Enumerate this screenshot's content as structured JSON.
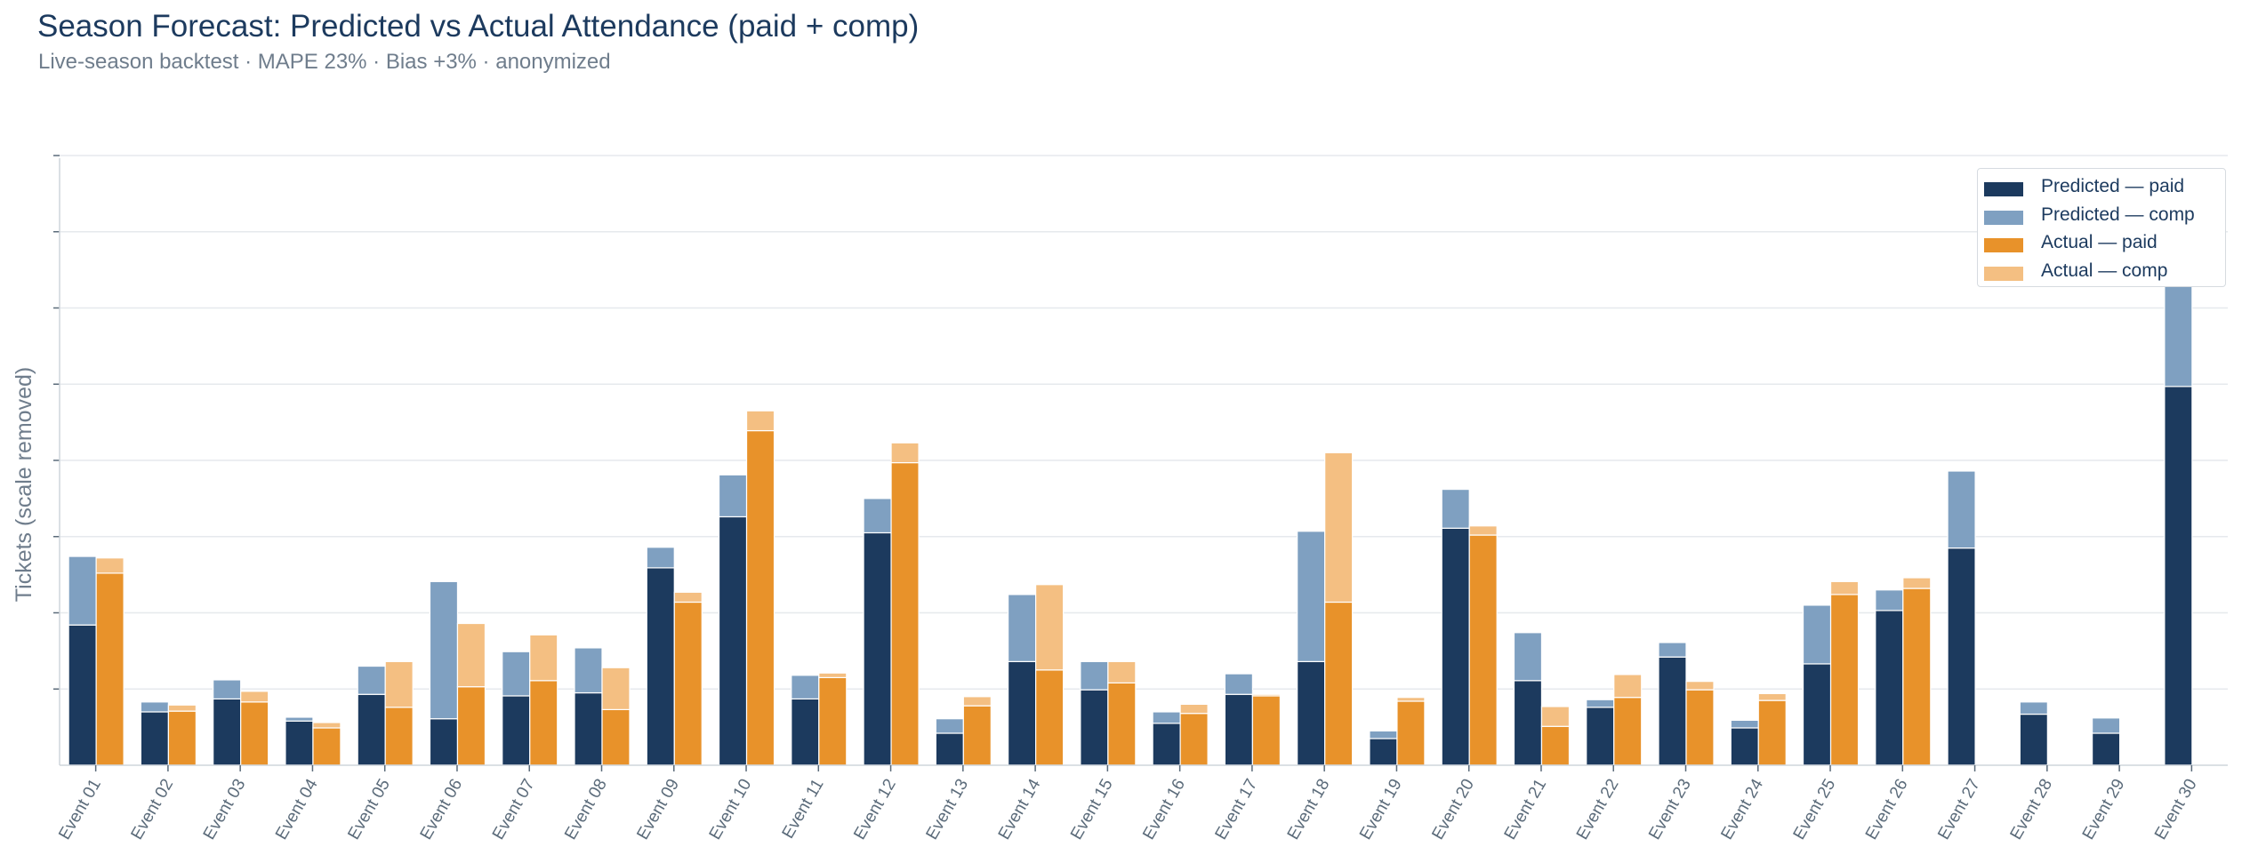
{
  "header": {
    "title": "Season Forecast: Predicted vs Actual Attendance (paid + comp)",
    "subtitle": "Live-season backtest  ·  MAPE 23%  ·  Bias +3%  ·  anonymized"
  },
  "chart_data": {
    "type": "bar",
    "stacked": true,
    "grouped": true,
    "ylabel": "Tickets (scale removed)",
    "y_tick_labels_shown": false,
    "ylim": [
      0,
      800
    ],
    "grid": "horizontal",
    "legend_position": "top-right",
    "categories": [
      "Event 01",
      "Event 02",
      "Event 03",
      "Event 04",
      "Event 05",
      "Event 06",
      "Event 07",
      "Event 08",
      "Event 09",
      "Event 10",
      "Event 11",
      "Event 12",
      "Event 13",
      "Event 14",
      "Event 15",
      "Event 16",
      "Event 17",
      "Event 18",
      "Event 19",
      "Event 20",
      "Event 21",
      "Event 22",
      "Event 23",
      "Event 24",
      "Event 25",
      "Event 26",
      "Event 27",
      "Event 28",
      "Event 29",
      "Event 30"
    ],
    "series": [
      {
        "name": "Predicted — paid",
        "group": "Predicted",
        "color": "#1c3a5e",
        "values": [
          184,
          70,
          87,
          58,
          93,
          61,
          91,
          95,
          259,
          326,
          87,
          305,
          42,
          136,
          99,
          55,
          93,
          136,
          35,
          311,
          111,
          76,
          142,
          49,
          133,
          203,
          285,
          67,
          42,
          497
        ]
      },
      {
        "name": "Predicted — comp",
        "group": "Predicted",
        "color": "#7fa0c1",
        "values": [
          90,
          13,
          25,
          5,
          37,
          180,
          58,
          59,
          27,
          55,
          31,
          45,
          19,
          88,
          37,
          15,
          27,
          171,
          10,
          51,
          63,
          10,
          19,
          10,
          77,
          27,
          101,
          16,
          20,
          136
        ]
      },
      {
        "name": "Actual — paid",
        "group": "Actual",
        "color": "#e8922a",
        "values": [
          252,
          71,
          83,
          49,
          76,
          103,
          111,
          73,
          214,
          439,
          115,
          397,
          78,
          125,
          108,
          68,
          91,
          214,
          84,
          302,
          51,
          89,
          99,
          85,
          224,
          232,
          null,
          null,
          null,
          null
        ]
      },
      {
        "name": "Actual — comp",
        "group": "Actual",
        "color": "#f4bf82",
        "values": [
          20,
          8,
          14,
          7,
          60,
          83,
          60,
          55,
          13,
          26,
          6,
          26,
          12,
          112,
          28,
          12,
          2,
          196,
          5,
          12,
          26,
          30,
          11,
          9,
          17,
          14,
          null,
          null,
          null,
          null
        ]
      }
    ]
  }
}
